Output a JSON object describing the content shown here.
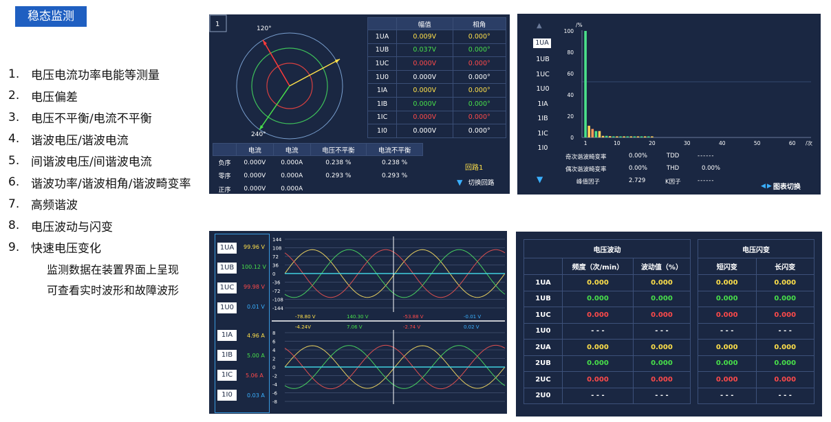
{
  "title": "稳态监测",
  "features": [
    {
      "num": "1.",
      "text": "电压电流功率电能等测量"
    },
    {
      "num": "2.",
      "text": "电压偏差"
    },
    {
      "num": "3.",
      "text": "电压不平衡/电流不平衡"
    },
    {
      "num": "4.",
      "text": "谐波电压/谐波电流"
    },
    {
      "num": "5.",
      "text": "间谐波电压/间谐波电流"
    },
    {
      "num": "6.",
      "text": "谐波功率/谐波相角/谐波畸变率"
    },
    {
      "num": "7.",
      "text": "高频谐波"
    },
    {
      "num": "8.",
      "text": "电压波动与闪变"
    },
    {
      "num": "9.",
      "text": "快速电压变化"
    }
  ],
  "notes": [
    "监测数据在装置界面上呈现",
    "可查看实时波形和故障波形"
  ],
  "phasor": {
    "page": "1",
    "angle_120": "120°",
    "angle_240": "240°",
    "headers": [
      "幅值",
      "相角"
    ],
    "rows": [
      {
        "name": "1UA",
        "mag": "0.009V",
        "ang": "0.000°",
        "c": "y"
      },
      {
        "name": "1UB",
        "mag": "0.037V",
        "ang": "0.000°",
        "c": "g"
      },
      {
        "name": "1UC",
        "mag": "0.000V",
        "ang": "0.000°",
        "c": "r"
      },
      {
        "name": "1U0",
        "mag": "0.000V",
        "ang": "0.000°",
        "c": "w"
      },
      {
        "name": "1IA",
        "mag": "0.000V",
        "ang": "0.000°",
        "c": "y"
      },
      {
        "name": "1IB",
        "mag": "0.000V",
        "ang": "0.000°",
        "c": "g"
      },
      {
        "name": "1IC",
        "mag": "0.000V",
        "ang": "0.000°",
        "c": "r"
      },
      {
        "name": "1I0",
        "mag": "0.000V",
        "ang": "0.000°",
        "c": "w"
      }
    ],
    "seq_headers": [
      "电流",
      "电流",
      "电压不平衡",
      "电流不平衡"
    ],
    "seq_rows": [
      {
        "name": "负序",
        "v1": "0.000V",
        "v2": "0.000A",
        "v3": "0.238 %",
        "v4": "0.238 %"
      },
      {
        "name": "零序",
        "v1": "0.000V",
        "v2": "0.000A",
        "v3": "0.293 %",
        "v4": "0.293 %"
      },
      {
        "name": "正序",
        "v1": "0.000V",
        "v2": "0.000A",
        "v3": "",
        "v4": ""
      }
    ],
    "loop_label": "回路1",
    "switch_loop": "切换回路"
  },
  "harmonic": {
    "channels": [
      "1UA",
      "1UB",
      "1UC",
      "1U0",
      "1IA",
      "1IB",
      "1IC",
      "1I0"
    ],
    "selected": "1UA",
    "y_unit": "/%",
    "x_unit": "/次",
    "y_ticks": [
      "100",
      "80",
      "60",
      "40",
      "20",
      "0"
    ],
    "x_ticks": [
      "1",
      "10",
      "20",
      "30",
      "40",
      "50",
      "60"
    ],
    "stats": [
      {
        "label": "奇次谐波畸变率",
        "value": "0.00%",
        "key": "TDD",
        "kv": "------"
      },
      {
        "label": "偶次谐波畸变率",
        "value": "0.00%",
        "key": "THD",
        "kv": "0.00%"
      },
      {
        "label": "峰值因子",
        "value": "2.729",
        "key": "K因子",
        "kv": "------"
      }
    ],
    "switch_chart": "图表切换"
  },
  "chart_data": {
    "type": "bar",
    "title": "",
    "xlabel": "/次",
    "ylabel": "/%",
    "ylim": [
      0,
      100
    ],
    "xlim": [
      0,
      64
    ],
    "x": [
      1,
      2,
      3,
      4,
      5,
      6,
      7,
      8,
      9,
      10,
      11,
      12,
      13,
      14,
      15,
      16,
      17,
      18,
      19,
      20
    ],
    "values": [
      100,
      11,
      8,
      6,
      6,
      1.5,
      1.5,
      1.2,
      1,
      1,
      1,
      1,
      1,
      1,
      1,
      1,
      1,
      1,
      1,
      1
    ],
    "colors": [
      "#4be08a",
      "#ffd05a",
      "#ff9a5a",
      "#4be08a",
      "#ffd05a",
      "#ffd05a",
      "#4be08a",
      "#ffd05a",
      "#4be08a",
      "#ffd05a",
      "#4be08a",
      "#ffd05a",
      "#4be08a",
      "#ffd05a",
      "#4be08a",
      "#ffd05a",
      "#4be08a",
      "#ffd05a",
      "#4be08a",
      "#ffd05a"
    ]
  },
  "waveform": {
    "voltage": [
      {
        "name": "1UA",
        "value": "99.96 V",
        "c": "y"
      },
      {
        "name": "1UB",
        "value": "100.12 V",
        "c": "g"
      },
      {
        "name": "1UC",
        "value": "99.98 V",
        "c": "r"
      },
      {
        "name": "1U0",
        "value": "0.01 V",
        "c": "b"
      }
    ],
    "current": [
      {
        "name": "1IA",
        "value": "4.96 A",
        "c": "y"
      },
      {
        "name": "1IB",
        "value": "5.00 A",
        "c": "g"
      },
      {
        "name": "1IC",
        "value": "5.06 A",
        "c": "r"
      },
      {
        "name": "1I0",
        "value": "0.03 A",
        "c": "b"
      }
    ],
    "v_ticks": [
      "144",
      "108",
      "72",
      "36",
      "0",
      "-36",
      "-72",
      "-108",
      "-144"
    ],
    "i_ticks": [
      "8",
      "6",
      "4",
      "2",
      "0",
      "-2",
      "-4",
      "-6",
      "-8"
    ],
    "v_cursor": [
      {
        "value": "-78.80 V",
        "c": "y"
      },
      {
        "value": "140.30 V",
        "c": "g"
      },
      {
        "value": "-53.88 V",
        "c": "r"
      },
      {
        "value": "-0.01 V",
        "c": "b"
      }
    ],
    "i_cursor": [
      {
        "value": "-4.24V",
        "c": "y"
      },
      {
        "value": "7.06 V",
        "c": "g"
      },
      {
        "value": "-2.74 V",
        "c": "r"
      },
      {
        "value": "0.02 V",
        "c": "b"
      }
    ]
  },
  "flicker": {
    "fluct_title": "电压波动",
    "flicker_title": "电压闪变",
    "col_freq": "频度（次/min）",
    "col_val": "波动值（%）",
    "col_short": "短闪变",
    "col_long": "长闪变",
    "rows": [
      {
        "name": "1UA",
        "vals": [
          "0.000",
          "0.000",
          "0.000",
          "0.000"
        ],
        "c": "y"
      },
      {
        "name": "1UB",
        "vals": [
          "0.000",
          "0.000",
          "0.000",
          "0.000"
        ],
        "c": "g"
      },
      {
        "name": "1UC",
        "vals": [
          "0.000",
          "0.000",
          "0.000",
          "0.000"
        ],
        "c": "r"
      },
      {
        "name": "1U0",
        "vals": [
          "- - -",
          "- - -",
          "- - -",
          "- - -"
        ],
        "c": "w"
      },
      {
        "name": "2UA",
        "vals": [
          "0.000",
          "0.000",
          "0.000",
          "0.000"
        ],
        "c": "y"
      },
      {
        "name": "2UB",
        "vals": [
          "0.000",
          "0.000",
          "0.000",
          "0.000"
        ],
        "c": "g"
      },
      {
        "name": "2UC",
        "vals": [
          "0.000",
          "0.000",
          "0.000",
          "0.000"
        ],
        "c": "r"
      },
      {
        "name": "2U0",
        "vals": [
          "- - -",
          "- - -",
          "- - -",
          "- - -"
        ],
        "c": "w"
      }
    ]
  }
}
